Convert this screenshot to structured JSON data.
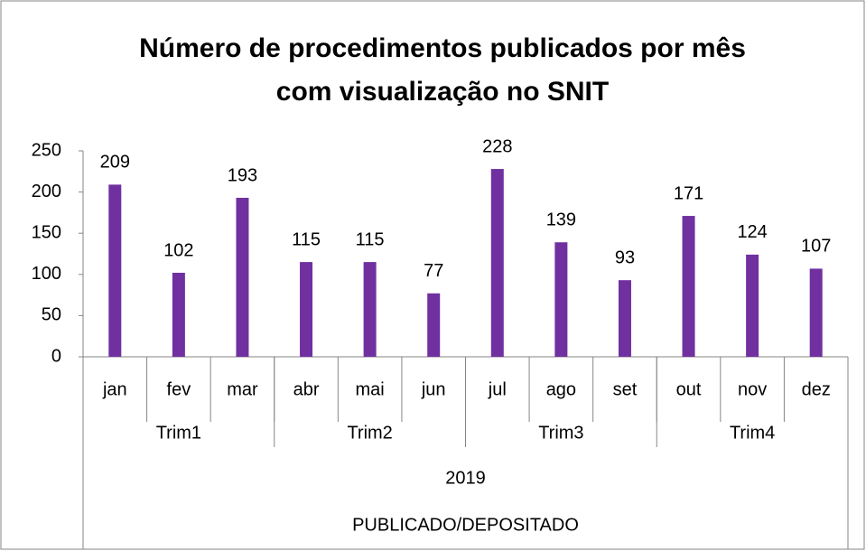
{
  "chart_data": {
    "type": "bar",
    "title": [
      "Número de procedimentos publicados por mês",
      "com visualização no SNIT"
    ],
    "categories": [
      "jan",
      "fev",
      "mar",
      "abr",
      "mai",
      "jun",
      "jul",
      "ago",
      "set",
      "out",
      "nov",
      "dez"
    ],
    "values": [
      209,
      102,
      193,
      115,
      115,
      77,
      228,
      139,
      93,
      171,
      124,
      107
    ],
    "quarters": [
      "Trim1",
      "Trim2",
      "Trim3",
      "Trim4"
    ],
    "year": "2019",
    "axis_group_label": "PUBLICADO/DEPOSITADO",
    "color": "#7030a0",
    "ylim": [
      0,
      250
    ],
    "yticks": [
      0,
      50,
      100,
      150,
      200,
      250
    ],
    "grid": false
  }
}
